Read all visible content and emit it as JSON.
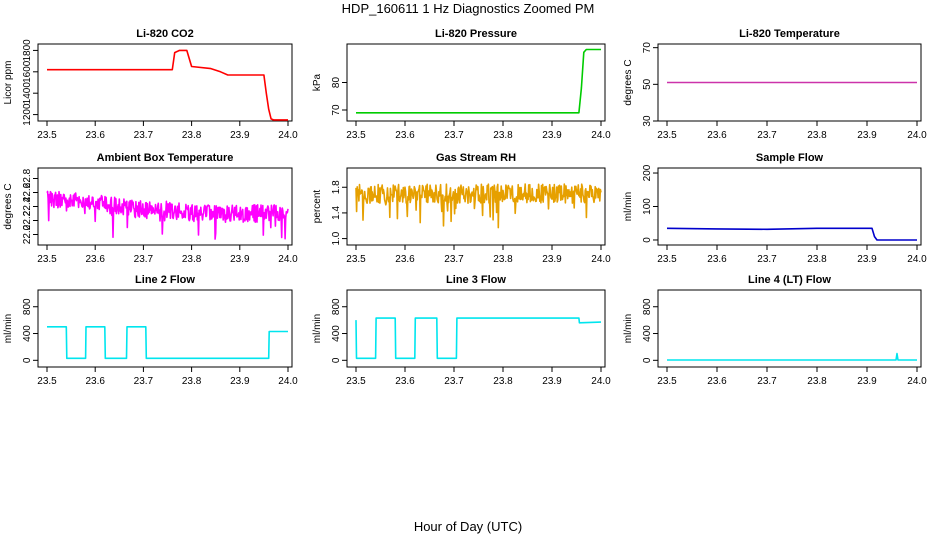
{
  "figure": {
    "title": "HDP_160611  1 Hz Diagnostics Zoomed PM",
    "xlabel": "Hour of Day (UTC)"
  },
  "chart_data": [
    {
      "type": "line",
      "title": "Li-820 CO2",
      "ylabel": "Licor ppm",
      "color": "#ff0000",
      "xlim": [
        23.5,
        24.0
      ],
      "ylim": [
        1140,
        1860
      ],
      "xticks": [
        "23.5",
        "23.6",
        "23.7",
        "23.8",
        "23.9",
        "24.0"
      ],
      "yticks": [
        "1200",
        "1400",
        "1600",
        "1800"
      ],
      "x": [
        23.5,
        23.76,
        23.765,
        23.775,
        23.79,
        23.8,
        23.84,
        23.86,
        23.875,
        23.95,
        23.955,
        23.96,
        23.965,
        23.97,
        24.0
      ],
      "y": [
        1620,
        1620,
        1780,
        1800,
        1800,
        1650,
        1630,
        1600,
        1570,
        1570,
        1400,
        1250,
        1160,
        1150,
        1150
      ]
    },
    {
      "type": "line",
      "title": "Li-820 Pressure",
      "ylabel": "kPa",
      "color": "#00cc00",
      "xlim": [
        23.5,
        24.0
      ],
      "ylim": [
        66,
        94
      ],
      "xticks": [
        "23.5",
        "23.6",
        "23.7",
        "23.8",
        "23.9",
        "24.0"
      ],
      "yticks": [
        "70",
        "80"
      ],
      "x": [
        23.5,
        23.955,
        23.96,
        23.965,
        23.97,
        24.0
      ],
      "y": [
        69,
        69,
        78,
        91,
        92,
        92
      ]
    },
    {
      "type": "line",
      "title": "Li-820 Temperature",
      "ylabel": "degrees C",
      "color": "#cc33aa",
      "xlim": [
        23.5,
        24.0
      ],
      "ylim": [
        30,
        72
      ],
      "xticks": [
        "23.5",
        "23.6",
        "23.7",
        "23.8",
        "23.9",
        "24.0"
      ],
      "yticks": [
        "30",
        "50",
        "70"
      ],
      "x": [
        23.5,
        24.0
      ],
      "y": [
        51,
        51
      ]
    },
    {
      "type": "line",
      "title": "Ambient Box Temperature",
      "ylabel": "degrees C",
      "color": "#ff00ff",
      "xlim": [
        23.5,
        24.0
      ],
      "ylim": [
        21.85,
        22.95
      ],
      "xticks": [
        "23.5",
        "23.6",
        "23.7",
        "23.8",
        "23.9",
        "24.0"
      ],
      "yticks": [
        "22.0",
        "22.2",
        "22.4",
        "22.6",
        "22.8"
      ],
      "x": [
        23.5,
        23.55,
        23.6,
        23.65,
        23.7,
        23.75,
        23.8,
        23.85,
        23.9,
        23.95,
        24.0
      ],
      "y": [
        22.5,
        22.5,
        22.45,
        22.4,
        22.35,
        22.35,
        22.3,
        22.3,
        22.3,
        22.3,
        22.3
      ],
      "noise": 0.25
    },
    {
      "type": "line",
      "title": "Gas Stream RH",
      "ylabel": "percent",
      "color": "#e6a000",
      "xlim": [
        23.5,
        24.0
      ],
      "ylim": [
        0.9,
        2.1
      ],
      "xticks": [
        "23.5",
        "23.6",
        "23.7",
        "23.8",
        "23.9",
        "24.0"
      ],
      "yticks": [
        "1.0",
        "1.4",
        "1.8"
      ],
      "x": [
        23.5,
        23.6,
        23.7,
        23.8,
        23.9,
        24.0
      ],
      "y": [
        1.7,
        1.7,
        1.7,
        1.7,
        1.7,
        1.7
      ],
      "noise": 0.3
    },
    {
      "type": "line",
      "title": "Sample Flow",
      "ylabel": "ml/min",
      "color": "#0000cc",
      "xlim": [
        23.5,
        24.0
      ],
      "ylim": [
        -15,
        215
      ],
      "xticks": [
        "23.5",
        "23.6",
        "23.7",
        "23.8",
        "23.9",
        "24.0"
      ],
      "yticks": [
        "0",
        "100",
        "200"
      ],
      "x": [
        23.5,
        23.6,
        23.7,
        23.8,
        23.91,
        23.915,
        23.92,
        24.0
      ],
      "y": [
        35,
        33,
        32,
        35,
        35,
        10,
        0,
        0
      ]
    },
    {
      "type": "line",
      "title": "Line 2 Flow",
      "ylabel": "ml/min",
      "color": "#00e5ee",
      "xlim": [
        23.5,
        24.0
      ],
      "ylim": [
        -100,
        1050
      ],
      "xticks": [
        "23.5",
        "23.6",
        "23.7",
        "23.8",
        "23.9",
        "24.0"
      ],
      "yticks": [
        "0",
        "400",
        "800"
      ],
      "x": [
        23.5,
        23.505,
        23.54,
        23.541,
        23.58,
        23.581,
        23.62,
        23.621,
        23.665,
        23.666,
        23.705,
        23.706,
        23.96,
        23.961,
        24.0
      ],
      "y": [
        500,
        500,
        500,
        30,
        30,
        500,
        500,
        30,
        30,
        500,
        500,
        30,
        30,
        430,
        430
      ]
    },
    {
      "type": "line",
      "title": "Line 3 Flow",
      "ylabel": "ml/min",
      "color": "#00e5ee",
      "xlim": [
        23.5,
        24.0
      ],
      "ylim": [
        -100,
        1050
      ],
      "xticks": [
        "23.5",
        "23.6",
        "23.7",
        "23.8",
        "23.9",
        "24.0"
      ],
      "yticks": [
        "0",
        "400",
        "800"
      ],
      "x": [
        23.5,
        23.501,
        23.54,
        23.541,
        23.58,
        23.581,
        23.62,
        23.621,
        23.665,
        23.666,
        23.705,
        23.706,
        23.955,
        23.956,
        24.0
      ],
      "y": [
        600,
        30,
        30,
        630,
        630,
        30,
        30,
        630,
        630,
        30,
        30,
        630,
        630,
        560,
        570
      ]
    },
    {
      "type": "line",
      "title": "Line 4 (LT) Flow",
      "ylabel": "ml/min",
      "color": "#00e5ee",
      "xlim": [
        23.5,
        24.0
      ],
      "ylim": [
        -100,
        1050
      ],
      "xticks": [
        "23.5",
        "23.6",
        "23.7",
        "23.8",
        "23.9",
        "24.0"
      ],
      "yticks": [
        "0",
        "400",
        "800"
      ],
      "x": [
        23.5,
        23.6,
        23.7,
        23.8,
        23.9,
        23.958,
        23.96,
        23.962,
        24.0
      ],
      "y": [
        5,
        5,
        5,
        5,
        5,
        5,
        100,
        5,
        5
      ]
    }
  ]
}
